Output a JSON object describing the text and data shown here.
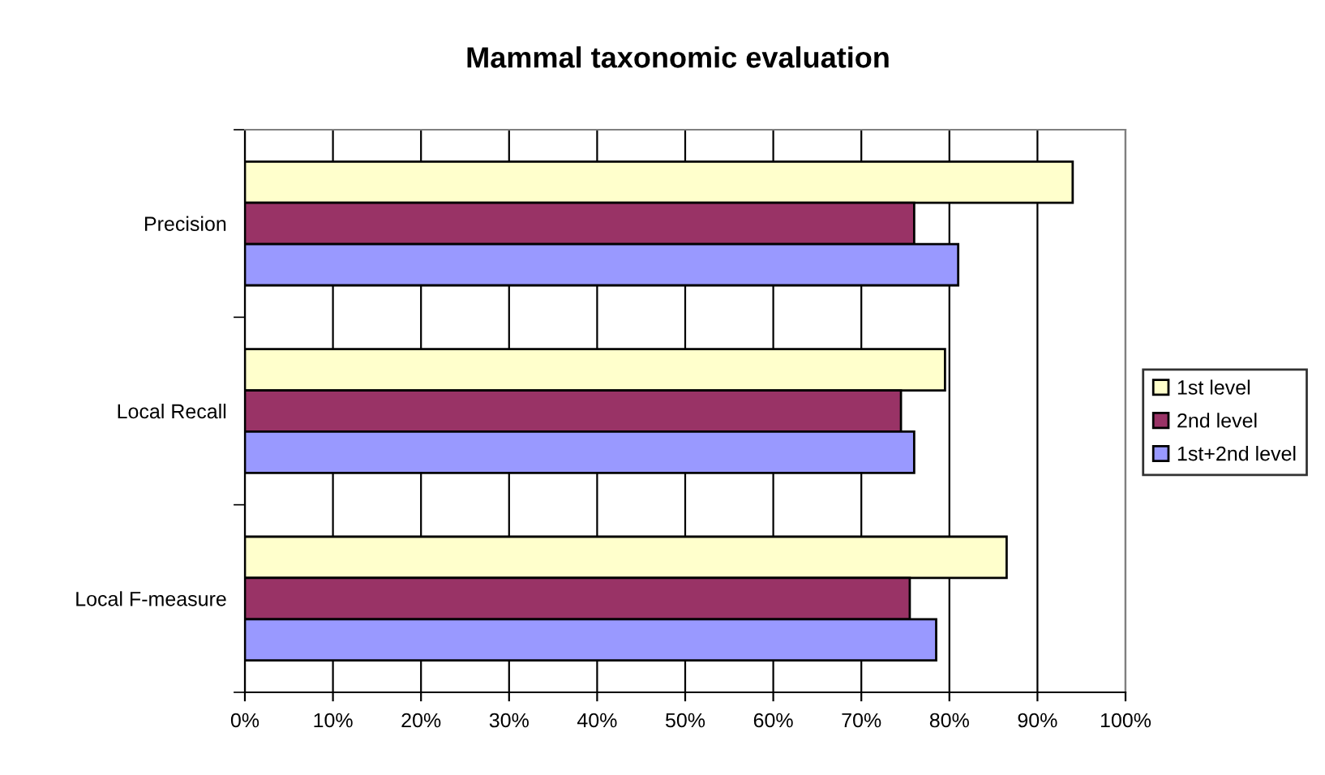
{
  "chart_data": {
    "type": "bar",
    "orientation": "horizontal",
    "title": "Mammal taxonomic evaluation",
    "categories": [
      "Precision",
      "Local Recall",
      "Local F-measure"
    ],
    "series": [
      {
        "name": "1st level",
        "color": "#ffffcc",
        "values": [
          94,
          79.5,
          86.5
        ]
      },
      {
        "name": "2nd level",
        "color": "#993366",
        "values": [
          76,
          74.5,
          75.5
        ]
      },
      {
        "name": "1st+2nd level",
        "color": "#9999ff",
        "values": [
          81,
          76,
          78.5
        ]
      }
    ],
    "xlim": [
      0,
      100
    ],
    "xticks": [
      {
        "value": 0,
        "label": "0%"
      },
      {
        "value": 10,
        "label": "10%"
      },
      {
        "value": 20,
        "label": "20%"
      },
      {
        "value": 30,
        "label": "30%"
      },
      {
        "value": 40,
        "label": "40%"
      },
      {
        "value": 50,
        "label": "50%"
      },
      {
        "value": 60,
        "label": "60%"
      },
      {
        "value": 70,
        "label": "70%"
      },
      {
        "value": 80,
        "label": "80%"
      },
      {
        "value": 90,
        "label": "90%"
      },
      {
        "value": 100,
        "label": "100%"
      }
    ],
    "grid": "x",
    "legend": "right"
  }
}
